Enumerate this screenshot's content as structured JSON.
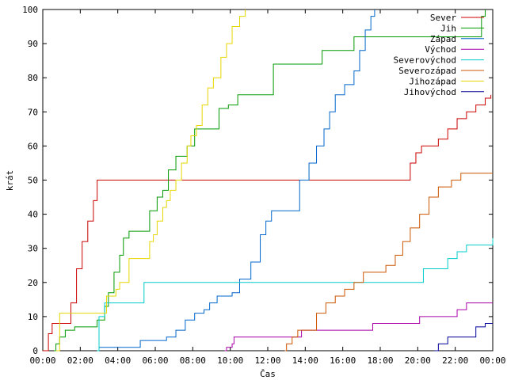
{
  "chart_data": {
    "type": "line",
    "title": "",
    "xlabel": "Čas",
    "ylabel": "krát",
    "xlim": [
      0,
      24
    ],
    "ylim": [
      0,
      100
    ],
    "x_ticks": [
      {
        "value": 0,
        "label": "00:00"
      },
      {
        "value": 2,
        "label": "02:00"
      },
      {
        "value": 4,
        "label": "04:00"
      },
      {
        "value": 6,
        "label": "06:00"
      },
      {
        "value": 8,
        "label": "08:00"
      },
      {
        "value": 10,
        "label": "10:00"
      },
      {
        "value": 12,
        "label": "12:00"
      },
      {
        "value": 14,
        "label": "14:00"
      },
      {
        "value": 16,
        "label": "16:00"
      },
      {
        "value": 18,
        "label": "18:00"
      },
      {
        "value": 20,
        "label": "20:00"
      },
      {
        "value": 22,
        "label": "22:00"
      },
      {
        "value": 24,
        "label": "00:00"
      }
    ],
    "y_ticks": [
      0,
      10,
      20,
      30,
      40,
      50,
      60,
      70,
      80,
      90,
      100
    ],
    "grid": false,
    "legend_position": "top-right",
    "series": [
      {
        "name": "Sever",
        "color": "#cc0000",
        "points": [
          [
            0,
            0
          ],
          [
            0.3,
            5
          ],
          [
            0.5,
            8
          ],
          [
            1.3,
            8
          ],
          [
            1.5,
            14
          ],
          [
            1.8,
            24
          ],
          [
            2.1,
            32
          ],
          [
            2.4,
            38
          ],
          [
            2.7,
            44
          ],
          [
            2.9,
            50
          ],
          [
            19.3,
            50
          ],
          [
            19.6,
            55
          ],
          [
            19.9,
            58
          ],
          [
            20.2,
            60
          ],
          [
            21.1,
            62
          ],
          [
            21.6,
            65
          ],
          [
            22.1,
            68
          ],
          [
            22.6,
            70
          ],
          [
            23.1,
            72
          ],
          [
            23.6,
            74
          ],
          [
            23.9,
            75
          ]
        ]
      },
      {
        "name": "Jih",
        "color": "#009900",
        "points": [
          [
            0.6,
            0
          ],
          [
            0.7,
            2
          ],
          [
            0.9,
            4
          ],
          [
            1.2,
            6
          ],
          [
            1.7,
            7
          ],
          [
            2.9,
            9
          ],
          [
            3.3,
            13
          ],
          [
            3.5,
            17
          ],
          [
            3.8,
            23
          ],
          [
            4.1,
            28
          ],
          [
            4.3,
            33
          ],
          [
            4.6,
            35
          ],
          [
            5.4,
            35
          ],
          [
            5.7,
            41
          ],
          [
            6.1,
            45
          ],
          [
            6.4,
            47
          ],
          [
            6.7,
            53
          ],
          [
            7.1,
            57
          ],
          [
            7.7,
            60
          ],
          [
            8.1,
            65
          ],
          [
            8.9,
            65
          ],
          [
            9.4,
            71
          ],
          [
            9.9,
            72
          ],
          [
            10.4,
            75
          ],
          [
            11.6,
            75
          ],
          [
            12.3,
            84
          ],
          [
            14.1,
            84
          ],
          [
            14.9,
            88
          ],
          [
            16.1,
            88
          ],
          [
            16.6,
            92
          ],
          [
            22.9,
            92
          ],
          [
            23.4,
            98
          ],
          [
            23.6,
            100
          ]
        ]
      },
      {
        "name": "Západ",
        "color": "#0066cc",
        "points": [
          [
            2.9,
            0
          ],
          [
            3.0,
            1
          ],
          [
            5.1,
            1
          ],
          [
            5.2,
            3
          ],
          [
            6.1,
            3
          ],
          [
            6.6,
            4
          ],
          [
            7.1,
            6
          ],
          [
            7.6,
            9
          ],
          [
            8.1,
            11
          ],
          [
            8.6,
            12
          ],
          [
            8.9,
            14
          ],
          [
            9.3,
            16
          ],
          [
            10.1,
            17
          ],
          [
            10.5,
            21
          ],
          [
            11.1,
            26
          ],
          [
            11.6,
            34
          ],
          [
            11.9,
            38
          ],
          [
            12.2,
            41
          ],
          [
            13.1,
            41
          ],
          [
            13.7,
            50
          ],
          [
            14.2,
            55
          ],
          [
            14.6,
            60
          ],
          [
            15.0,
            65
          ],
          [
            15.3,
            70
          ],
          [
            15.6,
            75
          ],
          [
            16.1,
            78
          ],
          [
            16.6,
            82
          ],
          [
            16.9,
            88
          ],
          [
            17.2,
            94
          ],
          [
            17.5,
            98
          ],
          [
            17.7,
            100
          ]
        ]
      },
      {
        "name": "Východ",
        "color": "#aa00aa",
        "points": [
          [
            9.7,
            0
          ],
          [
            9.8,
            1
          ],
          [
            10.1,
            2
          ],
          [
            10.2,
            4
          ],
          [
            13.4,
            4
          ],
          [
            13.8,
            6
          ],
          [
            17.1,
            6
          ],
          [
            17.6,
            8
          ],
          [
            19.6,
            8
          ],
          [
            20.1,
            10
          ],
          [
            21.6,
            10
          ],
          [
            22.1,
            12
          ],
          [
            22.6,
            14
          ],
          [
            24,
            14
          ]
        ]
      },
      {
        "name": "Severovýchod",
        "color": "#00cccc",
        "points": [
          [
            2.9,
            0
          ],
          [
            3.0,
            10
          ],
          [
            3.3,
            14
          ],
          [
            5.1,
            14
          ],
          [
            5.4,
            20
          ],
          [
            19.9,
            20
          ],
          [
            20.3,
            24
          ],
          [
            21.1,
            24
          ],
          [
            21.6,
            27
          ],
          [
            22.1,
            29
          ],
          [
            22.6,
            31
          ],
          [
            23.6,
            31
          ],
          [
            24,
            33
          ]
        ]
      },
      {
        "name": "Severozápad",
        "color": "#cc5500",
        "points": [
          [
            12.9,
            0
          ],
          [
            13.0,
            2
          ],
          [
            13.3,
            4
          ],
          [
            13.6,
            6
          ],
          [
            14.3,
            6
          ],
          [
            14.6,
            11
          ],
          [
            15.1,
            14
          ],
          [
            15.6,
            16
          ],
          [
            16.1,
            18
          ],
          [
            16.6,
            20
          ],
          [
            17.1,
            23
          ],
          [
            17.8,
            23
          ],
          [
            18.3,
            25
          ],
          [
            18.8,
            28
          ],
          [
            19.2,
            32
          ],
          [
            19.6,
            36
          ],
          [
            20.1,
            40
          ],
          [
            20.6,
            45
          ],
          [
            21.1,
            48
          ],
          [
            21.8,
            50
          ],
          [
            22.3,
            52
          ],
          [
            24,
            52
          ]
        ]
      },
      {
        "name": "Jihozápad",
        "color": "#e6d600",
        "points": [
          [
            0.7,
            0
          ],
          [
            0.9,
            11
          ],
          [
            2.9,
            11
          ],
          [
            3.4,
            16
          ],
          [
            3.9,
            18
          ],
          [
            4.1,
            20
          ],
          [
            4.6,
            27
          ],
          [
            5.3,
            27
          ],
          [
            5.7,
            32
          ],
          [
            5.9,
            34
          ],
          [
            6.1,
            38
          ],
          [
            6.4,
            42
          ],
          [
            6.6,
            44
          ],
          [
            6.8,
            47
          ],
          [
            7.1,
            50
          ],
          [
            7.4,
            55
          ],
          [
            7.7,
            60
          ],
          [
            7.9,
            63
          ],
          [
            8.2,
            66
          ],
          [
            8.5,
            72
          ],
          [
            8.8,
            77
          ],
          [
            9.1,
            80
          ],
          [
            9.5,
            86
          ],
          [
            9.8,
            90
          ],
          [
            10.1,
            95
          ],
          [
            10.5,
            98
          ],
          [
            10.8,
            100
          ]
        ]
      },
      {
        "name": "Jihovýchod",
        "color": "#000099",
        "points": [
          [
            20.9,
            0
          ],
          [
            21.1,
            2
          ],
          [
            21.6,
            4
          ],
          [
            22.6,
            4
          ],
          [
            23.1,
            7
          ],
          [
            23.6,
            8
          ],
          [
            24,
            8
          ]
        ]
      }
    ]
  }
}
